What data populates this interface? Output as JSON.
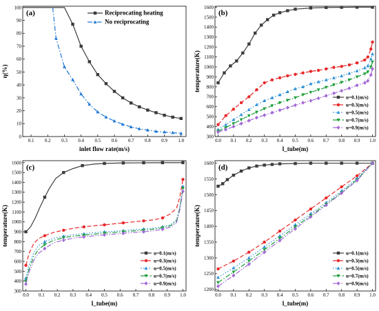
{
  "chart_data": [
    {
      "type": "line",
      "panel_label": "(a)",
      "xlabel": "inlet flow rate(m/s)",
      "ylabel": "η(%)",
      "xlim": [
        0.05,
        1.03
      ],
      "ylim": [
        0,
        101
      ],
      "xticks": [
        "0.1",
        "0.2",
        "0.3",
        "0.4",
        "0.5",
        "0.6",
        "0.7",
        "0.8",
        "0.9",
        "1.0"
      ],
      "yticks": [
        "0",
        "10",
        "20",
        "30",
        "40",
        "50",
        "60",
        "70",
        "80",
        "90",
        "100"
      ],
      "legend_position": "top-right",
      "grid": false,
      "series": [
        {
          "name": "Reciprocating heating",
          "color": "#3a3a3a",
          "marker": "square",
          "dash": "solid",
          "x": [
            0.05,
            0.1,
            0.15,
            0.2,
            0.25,
            0.3,
            0.35,
            0.4,
            0.45,
            0.5,
            0.55,
            0.6,
            0.65,
            0.7,
            0.75,
            0.8,
            0.85,
            0.9,
            0.95,
            1.0
          ],
          "y": [
            100,
            100,
            100,
            100,
            100,
            100,
            87,
            70,
            58,
            48,
            41,
            35,
            30,
            26,
            23,
            20.5,
            18.5,
            16.5,
            15,
            14
          ],
          "mx": [
            0.35,
            0.4,
            0.45,
            0.5,
            0.55,
            0.6,
            0.65,
            0.7,
            0.75,
            0.8,
            0.85,
            0.9,
            0.95,
            1.0
          ]
        },
        {
          "name": "No reciprocating",
          "color": "#1f77d4",
          "marker": "triangle",
          "dash": "dashdot",
          "x": [
            0.23,
            0.25,
            0.3,
            0.35,
            0.4,
            0.45,
            0.5,
            0.55,
            0.6,
            0.65,
            0.7,
            0.75,
            0.8,
            0.85,
            0.9,
            0.95,
            1.0
          ],
          "y": [
            100,
            76,
            54,
            44,
            33,
            25,
            19,
            15,
            12,
            9.5,
            7.5,
            6,
            5,
            4,
            3.5,
            3,
            2.5
          ],
          "mx": [
            0.25,
            0.3,
            0.35,
            0.4,
            0.45,
            0.5,
            0.55,
            0.6,
            0.65,
            0.7,
            0.75,
            0.8,
            0.85,
            0.9,
            0.95,
            1.0
          ]
        }
      ]
    },
    {
      "type": "line",
      "panel_label": "(b)",
      "xlabel": "l_tube(m)",
      "ylabel": "temperature(K)",
      "xlim": [
        -0.02,
        1.02
      ],
      "ylim": [
        300,
        1610
      ],
      "xticks": [
        "0.0",
        "0.1",
        "0.2",
        "0.3",
        "0.4",
        "0.5",
        "0.6",
        "0.7",
        "0.8",
        "0.9",
        "1.0"
      ],
      "yticks": [
        "300",
        "400",
        "500",
        "600",
        "700",
        "800",
        "900",
        "1000",
        "1100",
        "1200",
        "1300",
        "1400",
        "1500",
        "1600"
      ],
      "legend_position": "bottom-right",
      "grid": false,
      "series": [
        {
          "name": "u=0.1(m/s)",
          "color": "#3d3d3d",
          "marker": "square",
          "dash": "solid",
          "x": [
            0,
            0.04,
            0.08,
            0.12,
            0.16,
            0.2,
            0.24,
            0.28,
            0.32,
            0.36,
            0.4,
            0.45,
            0.5,
            0.6,
            0.7,
            0.8,
            0.9,
            1.0
          ],
          "y": [
            840,
            940,
            1010,
            1060,
            1140,
            1230,
            1340,
            1420,
            1475,
            1520,
            1545,
            1565,
            1580,
            1592,
            1597,
            1599,
            1600,
            1600
          ]
        },
        {
          "name": "u=0.3(m/s)",
          "color": "#e8282a",
          "marker": "circle",
          "dash": "dashed",
          "x": [
            0,
            0.05,
            0.1,
            0.15,
            0.2,
            0.25,
            0.3,
            0.35,
            0.4,
            0.45,
            0.5,
            0.55,
            0.6,
            0.65,
            0.7,
            0.75,
            0.8,
            0.85,
            0.9,
            0.95,
            0.97,
            0.99,
            1.0
          ],
          "y": [
            420,
            510,
            575,
            640,
            700,
            770,
            840,
            870,
            890,
            910,
            925,
            940,
            955,
            965,
            980,
            995,
            1005,
            1020,
            1040,
            1070,
            1100,
            1180,
            1250
          ]
        },
        {
          "name": "u=0.5(m/s)",
          "color": "#2b8fd6",
          "marker": "triangle",
          "dash": "dotted",
          "x": [
            0,
            0.05,
            0.1,
            0.15,
            0.2,
            0.25,
            0.3,
            0.35,
            0.4,
            0.45,
            0.5,
            0.55,
            0.6,
            0.65,
            0.7,
            0.75,
            0.8,
            0.85,
            0.9,
            0.95,
            0.97,
            0.99,
            1.0
          ],
          "y": [
            370,
            420,
            470,
            520,
            570,
            620,
            660,
            690,
            720,
            750,
            780,
            800,
            830,
            850,
            870,
            890,
            910,
            935,
            960,
            990,
            1010,
            1080,
            1130
          ]
        },
        {
          "name": "u=0.7(m/s)",
          "color": "#1d9e3a",
          "marker": "triangle-down",
          "dash": "dashdot",
          "x": [
            0,
            0.05,
            0.1,
            0.15,
            0.2,
            0.25,
            0.3,
            0.35,
            0.4,
            0.45,
            0.5,
            0.55,
            0.6,
            0.65,
            0.7,
            0.75,
            0.8,
            0.85,
            0.9,
            0.95,
            0.97,
            0.99,
            1.0
          ],
          "y": [
            355,
            390,
            430,
            470,
            510,
            545,
            580,
            610,
            640,
            665,
            690,
            720,
            745,
            770,
            795,
            820,
            845,
            870,
            900,
            930,
            950,
            1000,
            1050
          ]
        },
        {
          "name": "u=0.9(m/s)",
          "color": "#a26ad6",
          "marker": "diamond",
          "dash": "dashdotdot",
          "x": [
            0,
            0.05,
            0.1,
            0.15,
            0.2,
            0.25,
            0.3,
            0.35,
            0.4,
            0.45,
            0.5,
            0.55,
            0.6,
            0.65,
            0.7,
            0.75,
            0.8,
            0.85,
            0.9,
            0.95,
            0.97,
            0.99,
            1.0
          ],
          "y": [
            345,
            370,
            400,
            430,
            460,
            490,
            515,
            540,
            565,
            590,
            615,
            640,
            660,
            685,
            710,
            735,
            760,
            785,
            815,
            840,
            860,
            920,
            980
          ]
        }
      ]
    },
    {
      "type": "line",
      "panel_label": "(c)",
      "xlabel": "l_tube(m)",
      "ylabel": "temperature(K)",
      "xlim": [
        -0.02,
        1.02
      ],
      "ylim": [
        300,
        1620
      ],
      "xticks": [
        "0.0",
        "0.1",
        "0.2",
        "0.3",
        "0.4",
        "0.5",
        "0.6",
        "0.7",
        "0.8",
        "0.9",
        "1.0"
      ],
      "yticks": [
        "300",
        "400",
        "500",
        "600",
        "700",
        "800",
        "900",
        "1000",
        "1100",
        "1200",
        "1300",
        "1400",
        "1500",
        "1600"
      ],
      "legend_position": "bottom-right",
      "grid": false,
      "series": [
        {
          "name": "u=0.1(m/s)",
          "color": "#3d3d3d",
          "marker": "square",
          "dash": "solid",
          "x": [
            0,
            0.03,
            0.06,
            0.09,
            0.12,
            0.15,
            0.19,
            0.24,
            0.3,
            0.36,
            0.43,
            0.5,
            0.6,
            0.7,
            0.8,
            0.9,
            1.0
          ],
          "y": [
            900,
            950,
            1040,
            1150,
            1250,
            1340,
            1440,
            1500,
            1540,
            1570,
            1585,
            1592,
            1596,
            1598,
            1599,
            1600,
            1600
          ],
          "mx": [
            0,
            0.12,
            0.24,
            0.36,
            0.5,
            0.62,
            0.75,
            0.87,
            1.0
          ]
        },
        {
          "name": "u=0.3(m/s)",
          "color": "#e8282a",
          "marker": "circle",
          "dash": "dashed",
          "x": [
            0,
            0.02,
            0.05,
            0.08,
            0.12,
            0.18,
            0.24,
            0.3,
            0.37,
            0.43,
            0.5,
            0.56,
            0.62,
            0.68,
            0.75,
            0.81,
            0.87,
            0.92,
            0.96,
            0.98,
            1.0
          ],
          "y": [
            560,
            680,
            780,
            830,
            860,
            895,
            915,
            935,
            950,
            960,
            970,
            980,
            990,
            1000,
            1010,
            1020,
            1040,
            1080,
            1140,
            1250,
            1430
          ],
          "mx": [
            0,
            0.12,
            0.24,
            0.37,
            0.5,
            0.62,
            0.75,
            0.87,
            1.0
          ]
        },
        {
          "name": "u=0.5(m/s)",
          "color": "#2b8fd6",
          "marker": "triangle",
          "dash": "dotted",
          "x": [
            0,
            0.02,
            0.05,
            0.08,
            0.12,
            0.18,
            0.24,
            0.3,
            0.37,
            0.43,
            0.5,
            0.56,
            0.62,
            0.68,
            0.75,
            0.81,
            0.87,
            0.92,
            0.96,
            0.98,
            1.0
          ],
          "y": [
            430,
            560,
            690,
            760,
            800,
            835,
            855,
            870,
            880,
            890,
            900,
            905,
            912,
            920,
            928,
            936,
            950,
            970,
            1020,
            1150,
            1360
          ],
          "mx": [
            0,
            0.12,
            0.24,
            0.37,
            0.5,
            0.62,
            0.75,
            0.87,
            1.0
          ]
        },
        {
          "name": "u=0.7(m/s)",
          "color": "#1d9e3a",
          "marker": "triangle-down",
          "dash": "dashdot",
          "x": [
            0,
            0.02,
            0.05,
            0.08,
            0.12,
            0.18,
            0.24,
            0.3,
            0.37,
            0.43,
            0.5,
            0.56,
            0.62,
            0.68,
            0.75,
            0.81,
            0.87,
            0.92,
            0.96,
            0.98,
            1.0
          ],
          "y": [
            400,
            520,
            650,
            720,
            770,
            815,
            840,
            855,
            866,
            875,
            885,
            892,
            900,
            908,
            916,
            926,
            940,
            960,
            1010,
            1140,
            1340
          ],
          "mx": [
            0,
            0.12,
            0.24,
            0.37,
            0.5,
            0.62,
            0.75,
            0.87,
            1.0
          ]
        },
        {
          "name": "u=0.9(m/s)",
          "color": "#a26ad6",
          "marker": "diamond",
          "dash": "dashdotdot",
          "x": [
            0,
            0.02,
            0.05,
            0.08,
            0.12,
            0.18,
            0.24,
            0.3,
            0.37,
            0.43,
            0.5,
            0.56,
            0.62,
            0.68,
            0.75,
            0.81,
            0.87,
            0.92,
            0.96,
            0.98,
            1.0
          ],
          "y": [
            370,
            490,
            610,
            680,
            730,
            790,
            815,
            835,
            848,
            858,
            868,
            876,
            884,
            892,
            900,
            910,
            925,
            945,
            995,
            1120,
            1310
          ],
          "mx": [
            0,
            0.12,
            0.24,
            0.37,
            0.5,
            0.62,
            0.75,
            0.87,
            1.0
          ]
        }
      ]
    },
    {
      "type": "line",
      "panel_label": "(d)",
      "xlabel": "l_tube(m)",
      "ylabel": "temperature(K)",
      "xlim": [
        -0.02,
        1.02
      ],
      "ylim": [
        1195,
        1608
      ],
      "xticks": [
        "0.0",
        "0.1",
        "0.2",
        "0.3",
        "0.4",
        "0.5",
        "0.6",
        "0.7",
        "0.8",
        "0.9",
        "1.0"
      ],
      "yticks": [
        "1200",
        "1250",
        "1300",
        "1350",
        "1400",
        "1450",
        "1500",
        "1550",
        "1600"
      ],
      "legend_position": "bottom-right",
      "grid": false,
      "series": [
        {
          "name": "u=0.1(m/s)",
          "color": "#3d3d3d",
          "marker": "square",
          "dash": "solid",
          "x": [
            0,
            0.03,
            0.06,
            0.1,
            0.15,
            0.2,
            0.25,
            0.3,
            0.35,
            0.4,
            0.5,
            0.6,
            0.7,
            0.8,
            0.9,
            1.0
          ],
          "y": [
            1527,
            1535,
            1548,
            1562,
            1575,
            1585,
            1591,
            1594,
            1596,
            1598,
            1599,
            1600,
            1600,
            1600,
            1600,
            1600
          ]
        },
        {
          "name": "u=0.3(m/s)",
          "color": "#e8282a",
          "marker": "circle",
          "dash": "dashed",
          "x": [
            0,
            0.1,
            0.2,
            0.3,
            0.4,
            0.5,
            0.6,
            0.7,
            0.8,
            0.9,
            1.0
          ],
          "y": [
            1265,
            1290,
            1318,
            1350,
            1385,
            1420,
            1455,
            1490,
            1525,
            1560,
            1600
          ]
        },
        {
          "name": "u=0.5(m/s)",
          "color": "#2b8fd6",
          "marker": "triangle",
          "dash": "dotted",
          "x": [
            0,
            0.1,
            0.2,
            0.3,
            0.4,
            0.5,
            0.6,
            0.7,
            0.8,
            0.9,
            1.0
          ],
          "y": [
            1238,
            1268,
            1300,
            1335,
            1370,
            1405,
            1440,
            1475,
            1512,
            1552,
            1600
          ]
        },
        {
          "name": "u=0.7(m/s)",
          "color": "#1d9e3a",
          "marker": "triangle-down",
          "dash": "dashdot",
          "x": [
            0,
            0.1,
            0.2,
            0.3,
            0.4,
            0.5,
            0.6,
            0.7,
            0.8,
            0.9,
            1.0
          ],
          "y": [
            1222,
            1255,
            1290,
            1326,
            1362,
            1398,
            1434,
            1470,
            1507,
            1548,
            1600
          ]
        },
        {
          "name": "u=0.9(m/s)",
          "color": "#a26ad6",
          "marker": "diamond",
          "dash": "dashdotdot",
          "x": [
            0,
            0.1,
            0.2,
            0.3,
            0.4,
            0.5,
            0.6,
            0.7,
            0.8,
            0.9,
            1.0
          ],
          "y": [
            1210,
            1244,
            1280,
            1318,
            1355,
            1392,
            1430,
            1467,
            1505,
            1545,
            1600
          ]
        }
      ]
    }
  ]
}
